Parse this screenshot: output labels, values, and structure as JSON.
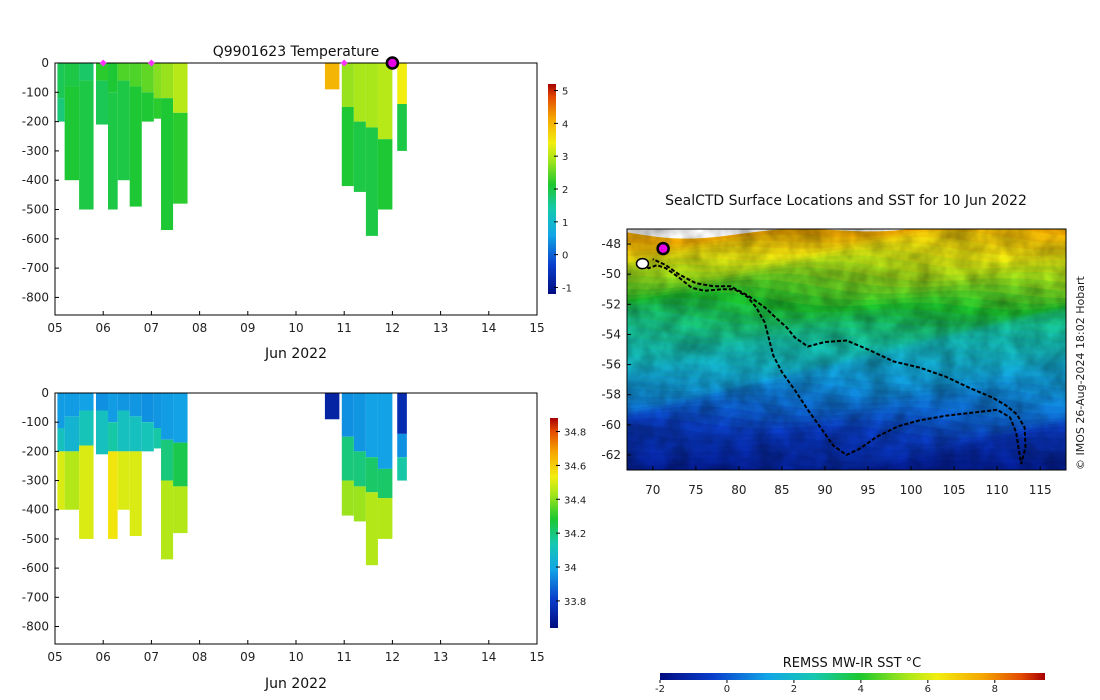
{
  "chart_data": [
    {
      "type": "heatmap",
      "title": "Q9901623  Temperature",
      "xlabel": "Jun 2022",
      "ylabel": "",
      "x_ticks": [
        "05",
        "06",
        "07",
        "08",
        "09",
        "10",
        "11",
        "12",
        "13",
        "14",
        "15"
      ],
      "y_ticks": [
        0,
        -100,
        -200,
        -300,
        -400,
        -500,
        -600,
        -700,
        -800
      ],
      "xlim": [
        5,
        15
      ],
      "ylim": [
        -860,
        0
      ],
      "colorbar": {
        "min": -1.2,
        "max": 5.2,
        "ticks": [
          -1,
          0,
          1,
          2,
          3,
          4,
          5
        ]
      },
      "surface_markers_days": [
        6.0,
        7.0,
        11.0
      ],
      "current_marker_day": 12.0,
      "profiles": [
        {
          "day": 5.05,
          "max_depth": 200,
          "segments": [
            [
              0,
              120,
              1.9
            ],
            [
              120,
              200,
              1.7
            ]
          ]
        },
        {
          "day": 5.2,
          "max_depth": 400,
          "segments": [
            [
              0,
              80,
              2.0
            ],
            [
              80,
              400,
              2.1
            ]
          ]
        },
        {
          "day": 5.5,
          "max_depth": 500,
          "segments": [
            [
              0,
              60,
              1.8
            ],
            [
              60,
              500,
              2.0
            ]
          ]
        },
        {
          "day": 5.85,
          "max_depth": 210,
          "segments": [
            [
              0,
              60,
              2.2
            ],
            [
              60,
              210,
              1.9
            ]
          ]
        },
        {
          "day": 6.1,
          "max_depth": 500,
          "segments": [
            [
              0,
              100,
              2.1
            ],
            [
              100,
              500,
              2.0
            ]
          ]
        },
        {
          "day": 6.3,
          "max_depth": 400,
          "segments": [
            [
              0,
              60,
              2.4
            ],
            [
              60,
              400,
              2.0
            ]
          ]
        },
        {
          "day": 6.55,
          "max_depth": 490,
          "segments": [
            [
              0,
              80,
              2.4
            ],
            [
              80,
              490,
              2.1
            ]
          ]
        },
        {
          "day": 6.8,
          "max_depth": 200,
          "segments": [
            [
              0,
              100,
              2.5
            ],
            [
              100,
              200,
              2.1
            ]
          ]
        },
        {
          "day": 7.05,
          "max_depth": 190,
          "segments": [
            [
              0,
              120,
              2.7
            ],
            [
              120,
              190,
              2.2
            ]
          ]
        },
        {
          "day": 7.2,
          "max_depth": 570,
          "segments": [
            [
              0,
              120,
              2.8
            ],
            [
              120,
              570,
              2.1
            ]
          ]
        },
        {
          "day": 7.45,
          "max_depth": 480,
          "segments": [
            [
              0,
              170,
              3.0
            ],
            [
              170,
              480,
              2.2
            ]
          ]
        },
        {
          "day": 10.6,
          "max_depth": 90,
          "segments": [
            [
              0,
              90,
              4.0
            ]
          ]
        },
        {
          "day": 10.95,
          "max_depth": 420,
          "segments": [
            [
              0,
              150,
              2.8
            ],
            [
              150,
              420,
              2.1
            ]
          ]
        },
        {
          "day": 11.2,
          "max_depth": 440,
          "segments": [
            [
              0,
              200,
              2.9
            ],
            [
              200,
              440,
              2.0
            ]
          ]
        },
        {
          "day": 11.45,
          "max_depth": 590,
          "segments": [
            [
              0,
              220,
              2.9
            ],
            [
              220,
              590,
              2.0
            ]
          ]
        },
        {
          "day": 11.7,
          "max_depth": 500,
          "segments": [
            [
              0,
              260,
              3.0
            ],
            [
              260,
              500,
              2.1
            ]
          ]
        },
        {
          "day": 12.1,
          "max_depth": 300,
          "segments": [
            [
              0,
              140,
              3.4
            ],
            [
              140,
              300,
              2.0
            ]
          ]
        }
      ]
    },
    {
      "type": "heatmap",
      "title": "",
      "xlabel": "Jun 2022",
      "ylabel": "",
      "x_ticks": [
        "05",
        "06",
        "07",
        "08",
        "09",
        "10",
        "11",
        "12",
        "13",
        "14",
        "15"
      ],
      "y_ticks": [
        0,
        -100,
        -200,
        -300,
        -400,
        -500,
        -600,
        -700,
        -800
      ],
      "xlim": [
        5,
        15
      ],
      "ylim": [
        -860,
        0
      ],
      "colorbar": {
        "min": 33.64,
        "max": 34.88,
        "ticks": [
          33.8,
          34,
          34.2,
          34.4,
          34.6,
          34.8
        ]
      },
      "profiles": [
        {
          "day": 5.05,
          "max_depth": 400,
          "segments": [
            [
              0,
              120,
              33.97
            ],
            [
              120,
              200,
              34.1
            ],
            [
              200,
              400,
              34.5
            ]
          ]
        },
        {
          "day": 5.2,
          "max_depth": 400,
          "segments": [
            [
              0,
              80,
              33.97
            ],
            [
              80,
              200,
              34.05
            ],
            [
              200,
              400,
              34.45
            ]
          ]
        },
        {
          "day": 5.5,
          "max_depth": 500,
          "segments": [
            [
              0,
              60,
              33.98
            ],
            [
              60,
              180,
              34.12
            ],
            [
              180,
              500,
              34.5
            ]
          ]
        },
        {
          "day": 5.85,
          "max_depth": 210,
          "segments": [
            [
              0,
              60,
              33.95
            ],
            [
              60,
              210,
              34.1
            ]
          ]
        },
        {
          "day": 6.1,
          "max_depth": 500,
          "segments": [
            [
              0,
              100,
              33.97
            ],
            [
              100,
              200,
              34.15
            ],
            [
              200,
              500,
              34.55
            ]
          ]
        },
        {
          "day": 6.3,
          "max_depth": 400,
          "segments": [
            [
              0,
              60,
              33.96
            ],
            [
              60,
              200,
              34.1
            ],
            [
              200,
              400,
              34.5
            ]
          ]
        },
        {
          "day": 6.55,
          "max_depth": 490,
          "segments": [
            [
              0,
              80,
              33.96
            ],
            [
              80,
              200,
              34.1
            ],
            [
              200,
              490,
              34.5
            ]
          ]
        },
        {
          "day": 6.8,
          "max_depth": 200,
          "segments": [
            [
              0,
              100,
              33.95
            ],
            [
              100,
              200,
              34.12
            ]
          ]
        },
        {
          "day": 7.05,
          "max_depth": 190,
          "segments": [
            [
              0,
              120,
              33.96
            ],
            [
              120,
              190,
              34.15
            ]
          ]
        },
        {
          "day": 7.2,
          "max_depth": 570,
          "segments": [
            [
              0,
              160,
              33.97
            ],
            [
              160,
              300,
              34.2
            ],
            [
              300,
              570,
              34.45
            ]
          ]
        },
        {
          "day": 7.45,
          "max_depth": 480,
          "segments": [
            [
              0,
              170,
              33.98
            ],
            [
              170,
              320,
              34.25
            ],
            [
              320,
              480,
              34.45
            ]
          ]
        },
        {
          "day": 10.6,
          "max_depth": 90,
          "segments": [
            [
              0,
              90,
              33.72
            ]
          ]
        },
        {
          "day": 10.95,
          "max_depth": 420,
          "segments": [
            [
              0,
              150,
              33.95
            ],
            [
              150,
              300,
              34.2
            ],
            [
              300,
              420,
              34.42
            ]
          ]
        },
        {
          "day": 11.2,
          "max_depth": 440,
          "segments": [
            [
              0,
              200,
              33.96
            ],
            [
              200,
              320,
              34.2
            ],
            [
              320,
              440,
              34.42
            ]
          ]
        },
        {
          "day": 11.45,
          "max_depth": 590,
          "segments": [
            [
              0,
              220,
              33.98
            ],
            [
              220,
              340,
              34.22
            ],
            [
              340,
              590,
              34.45
            ]
          ]
        },
        {
          "day": 11.7,
          "max_depth": 500,
          "segments": [
            [
              0,
              260,
              33.98
            ],
            [
              260,
              360,
              34.22
            ],
            [
              360,
              500,
              34.45
            ]
          ]
        },
        {
          "day": 12.1,
          "max_depth": 300,
          "segments": [
            [
              0,
              140,
              33.75
            ],
            [
              140,
              220,
              33.95
            ],
            [
              220,
              300,
              34.15
            ]
          ]
        }
      ]
    },
    {
      "type": "heatmap",
      "title": "SealCTD Surface Locations and SST for 10 Jun 2022",
      "xlabel": "",
      "ylabel": "",
      "x_ticks": [
        70,
        75,
        80,
        85,
        90,
        95,
        100,
        105,
        110,
        115
      ],
      "y_ticks": [
        -48,
        -50,
        -52,
        -54,
        -56,
        -58,
        -60,
        -62
      ],
      "xlim": [
        67,
        118
      ],
      "ylim": [
        -63,
        -47
      ],
      "colorbar": {
        "label": "REMSS MW-IR SST °C",
        "min": -2,
        "max": 9.5,
        "ticks": [
          -2,
          0,
          2,
          4,
          6,
          8
        ]
      },
      "sst_gradient_by_lat": [
        {
          "lat": -47,
          "sst": 7.5
        },
        {
          "lat": -49,
          "sst": 6.0
        },
        {
          "lat": -51,
          "sst": 4.5
        },
        {
          "lat": -53,
          "sst": 3.2
        },
        {
          "lat": -55,
          "sst": 2.2
        },
        {
          "lat": -57,
          "sst": 1.2
        },
        {
          "lat": -59,
          "sst": 0.2
        },
        {
          "lat": -61,
          "sst": -0.8
        },
        {
          "lat": -63,
          "sst": -1.5
        }
      ],
      "track": [
        [
          68.8,
          -49.3
        ],
        [
          69.5,
          -49.6
        ],
        [
          70.5,
          -49.4
        ],
        [
          71.5,
          -49.6
        ],
        [
          73,
          -50.2
        ],
        [
          74.5,
          -50.9
        ],
        [
          76,
          -51.1
        ],
        [
          78,
          -51.0
        ],
        [
          79.5,
          -51.0
        ],
        [
          81,
          -51.5
        ],
        [
          82,
          -52.2
        ],
        [
          83,
          -53.2
        ],
        [
          83.5,
          -54.3
        ],
        [
          84,
          -55.4
        ],
        [
          85,
          -56.5
        ],
        [
          86.5,
          -57.7
        ],
        [
          88,
          -59.0
        ],
        [
          89.5,
          -60.2
        ],
        [
          91,
          -61.4
        ],
        [
          92.5,
          -62.0
        ],
        [
          94,
          -61.6
        ],
        [
          96,
          -60.8
        ],
        [
          98.5,
          -60.1
        ],
        [
          101,
          -59.7
        ],
        [
          104,
          -59.4
        ],
        [
          107,
          -59.2
        ],
        [
          110,
          -59.0
        ],
        [
          111.5,
          -59.5
        ],
        [
          112.2,
          -60.5
        ],
        [
          112.5,
          -61.6
        ],
        [
          112.8,
          -62.6
        ],
        [
          113.3,
          -61.5
        ],
        [
          113.2,
          -60.2
        ],
        [
          112.3,
          -59.3
        ],
        [
          111,
          -58.7
        ],
        [
          109.5,
          -58.2
        ],
        [
          107,
          -57.6
        ],
        [
          104,
          -56.8
        ],
        [
          101,
          -56.2
        ],
        [
          98,
          -55.8
        ],
        [
          95,
          -55.0
        ],
        [
          92.5,
          -54.4
        ],
        [
          90,
          -54.5
        ],
        [
          88,
          -54.8
        ],
        [
          86.5,
          -54.2
        ],
        [
          85.5,
          -53.5
        ],
        [
          84.5,
          -53.0
        ],
        [
          83,
          -52.2
        ],
        [
          81,
          -51.4
        ],
        [
          79,
          -50.8
        ],
        [
          77,
          -50.8
        ],
        [
          75,
          -50.6
        ],
        [
          73,
          -50.0
        ],
        [
          71.5,
          -49.4
        ],
        [
          70,
          -49.0
        ]
      ],
      "seal_position": [
        71.2,
        -48.3
      ],
      "credit": "© IMOS 26-Aug-2024 18:02 Hobart"
    }
  ]
}
